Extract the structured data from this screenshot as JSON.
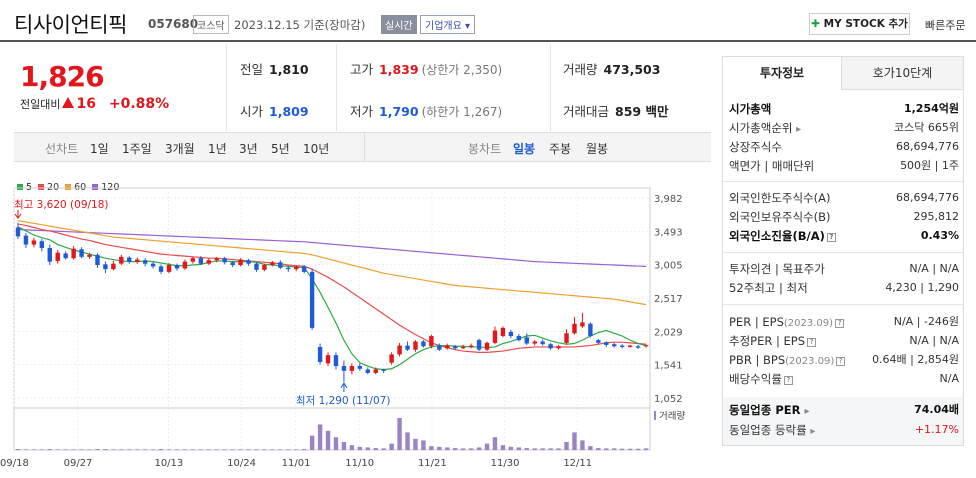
{
  "header": {
    "company_name": "티사이언티픽",
    "code": "057680",
    "market": "코스닥",
    "date": "2023.12.15 기준(장마감)",
    "realtime_label": "실시간",
    "company_info_label": "기업개요",
    "mystock_label": "MY STOCK 추가",
    "fast_order_label": "빠른주문"
  },
  "price": {
    "current": "1,826",
    "change_label": "전일대비",
    "change": "16",
    "change_rate": "+0.88%"
  },
  "stats": {
    "prev_close_label": "전일",
    "prev_close": "1,810",
    "high_label": "고가",
    "high": "1,839",
    "upper_limit": "(상한가 2,350)",
    "volume_label": "거래량",
    "volume": "473,503",
    "open_label": "시가",
    "open": "1,809",
    "low_label": "저가",
    "low": "1,790",
    "lower_limit": "(하한가 1,267)",
    "amount_label": "거래대금",
    "amount": "859 백만"
  },
  "tabs": {
    "line_label": "선차트",
    "periods": [
      "1일",
      "1주일",
      "3개월",
      "1년",
      "3년",
      "5년",
      "10년"
    ],
    "candle_label": "봉차트",
    "candles": [
      "일봉",
      "주봉",
      "월봉"
    ],
    "active_candle": "일봉"
  },
  "chart_data": {
    "type": "candlestick",
    "legend": [
      {
        "name": "5",
        "color": "#2eaa44"
      },
      {
        "name": "20",
        "color": "#e84c4c"
      },
      {
        "name": "60",
        "color": "#f0a030"
      },
      {
        "name": "120",
        "color": "#9a60d0"
      }
    ],
    "y_ticks": [
      "3,982",
      "3,493",
      "3,005",
      "2,517",
      "2,029",
      "1,541",
      "1,052"
    ],
    "ylim": [
      1052,
      3982
    ],
    "x_ticks": [
      "09/18",
      "09/27",
      "10/13",
      "10/24",
      "11/01",
      "11/10",
      "11/21",
      "11/30",
      "12/11"
    ],
    "max_annotation": "최고 3,620 (09/18)",
    "min_annotation": "최저 1,290 (11/07)",
    "volume_label": "거래량",
    "candles": [
      {
        "o": 3550,
        "c": 3420,
        "h": 3620,
        "l": 3380
      },
      {
        "o": 3430,
        "c": 3300,
        "h": 3470,
        "l": 3250
      },
      {
        "o": 3300,
        "c": 3360,
        "h": 3400,
        "l": 3260
      },
      {
        "o": 3350,
        "c": 3250,
        "h": 3380,
        "l": 3200
      },
      {
        "o": 3250,
        "c": 3050,
        "h": 3300,
        "l": 3000
      },
      {
        "o": 3060,
        "c": 3180,
        "h": 3220,
        "l": 3020
      },
      {
        "o": 3170,
        "c": 3100,
        "h": 3200,
        "l": 3080
      },
      {
        "o": 3100,
        "c": 3240,
        "h": 3280,
        "l": 3080
      },
      {
        "o": 3230,
        "c": 3120,
        "h": 3260,
        "l": 3100
      },
      {
        "o": 3120,
        "c": 3150,
        "h": 3180,
        "l": 3090
      },
      {
        "o": 3150,
        "c": 3000,
        "h": 3170,
        "l": 2960
      },
      {
        "o": 3010,
        "c": 2940,
        "h": 3050,
        "l": 2880
      },
      {
        "o": 2940,
        "c": 3020,
        "h": 3060,
        "l": 2920
      },
      {
        "o": 3020,
        "c": 3120,
        "h": 3150,
        "l": 3000
      },
      {
        "o": 3110,
        "c": 3050,
        "h": 3130,
        "l": 3020
      },
      {
        "o": 3050,
        "c": 3080,
        "h": 3110,
        "l": 3020
      },
      {
        "o": 3070,
        "c": 3020,
        "h": 3100,
        "l": 2980
      },
      {
        "o": 3020,
        "c": 2980,
        "h": 3050,
        "l": 2950
      },
      {
        "o": 2980,
        "c": 2900,
        "h": 3010,
        "l": 2870
      },
      {
        "o": 2900,
        "c": 3000,
        "h": 3030,
        "l": 2880
      },
      {
        "o": 3000,
        "c": 2950,
        "h": 3020,
        "l": 2920
      },
      {
        "o": 2950,
        "c": 3050,
        "h": 3080,
        "l": 2930
      },
      {
        "o": 3050,
        "c": 3100,
        "h": 3120,
        "l": 3020
      },
      {
        "o": 3100,
        "c": 3020,
        "h": 3130,
        "l": 3000
      },
      {
        "o": 3020,
        "c": 3070,
        "h": 3100,
        "l": 3000
      },
      {
        "o": 3070,
        "c": 3100,
        "h": 3120,
        "l": 3040
      },
      {
        "o": 3100,
        "c": 3040,
        "h": 3120,
        "l": 3010
      },
      {
        "o": 3040,
        "c": 3000,
        "h": 3060,
        "l": 2970
      },
      {
        "o": 3000,
        "c": 3080,
        "h": 3100,
        "l": 2980
      },
      {
        "o": 3070,
        "c": 3020,
        "h": 3090,
        "l": 2990
      },
      {
        "o": 3020,
        "c": 2930,
        "h": 3040,
        "l": 2900
      },
      {
        "o": 2930,
        "c": 3000,
        "h": 3020,
        "l": 2910
      },
      {
        "o": 3000,
        "c": 3040,
        "h": 3060,
        "l": 2980
      },
      {
        "o": 3040,
        "c": 2960,
        "h": 3070,
        "l": 2940
      },
      {
        "o": 2960,
        "c": 2940,
        "h": 2990,
        "l": 2900
      },
      {
        "o": 2940,
        "c": 2980,
        "h": 3000,
        "l": 2910
      },
      {
        "o": 2980,
        "c": 2900,
        "h": 3000,
        "l": 2880
      },
      {
        "o": 2900,
        "c": 2080,
        "h": 2950,
        "l": 2050
      },
      {
        "o": 1800,
        "c": 1580,
        "h": 1850,
        "l": 1540
      },
      {
        "o": 1560,
        "c": 1680,
        "h": 1720,
        "l": 1520
      },
      {
        "o": 1680,
        "c": 1520,
        "h": 1720,
        "l": 1470
      },
      {
        "o": 1520,
        "c": 1450,
        "h": 1600,
        "l": 1290
      },
      {
        "o": 1450,
        "c": 1520,
        "h": 1560,
        "l": 1400
      },
      {
        "o": 1520,
        "c": 1480,
        "h": 1560,
        "l": 1450
      },
      {
        "o": 1470,
        "c": 1420,
        "h": 1500,
        "l": 1400
      },
      {
        "o": 1420,
        "c": 1470,
        "h": 1500,
        "l": 1400
      },
      {
        "o": 1470,
        "c": 1450,
        "h": 1480,
        "l": 1420
      },
      {
        "o": 1570,
        "c": 1690,
        "h": 1720,
        "l": 1540
      },
      {
        "o": 1690,
        "c": 1820,
        "h": 1860,
        "l": 1660
      },
      {
        "o": 1820,
        "c": 1760,
        "h": 1880,
        "l": 1740
      },
      {
        "o": 1760,
        "c": 1880,
        "h": 1900,
        "l": 1730
      },
      {
        "o": 1880,
        "c": 1810,
        "h": 1900,
        "l": 1790
      },
      {
        "o": 1810,
        "c": 1960,
        "h": 1980,
        "l": 1780
      },
      {
        "o": 1820,
        "c": 1760,
        "h": 1850,
        "l": 1740
      },
      {
        "o": 1780,
        "c": 1820,
        "h": 1850,
        "l": 1760
      },
      {
        "o": 1810,
        "c": 1780,
        "h": 1830,
        "l": 1760
      },
      {
        "o": 1780,
        "c": 1800,
        "h": 1830,
        "l": 1770
      },
      {
        "o": 1800,
        "c": 1820,
        "h": 1850,
        "l": 1780
      },
      {
        "o": 1900,
        "c": 1760,
        "h": 1920,
        "l": 1740
      },
      {
        "o": 1760,
        "c": 1860,
        "h": 1880,
        "l": 1740
      },
      {
        "o": 1860,
        "c": 2040,
        "h": 2100,
        "l": 1840
      },
      {
        "o": 1960,
        "c": 2080,
        "h": 2100,
        "l": 1940
      },
      {
        "o": 2020,
        "c": 1960,
        "h": 2050,
        "l": 1930
      },
      {
        "o": 1960,
        "c": 1900,
        "h": 1990,
        "l": 1880
      },
      {
        "o": 1940,
        "c": 1850,
        "h": 2000,
        "l": 1830
      },
      {
        "o": 1850,
        "c": 1880,
        "h": 1900,
        "l": 1820
      },
      {
        "o": 1880,
        "c": 1840,
        "h": 1910,
        "l": 1820
      },
      {
        "o": 1840,
        "c": 1780,
        "h": 1860,
        "l": 1760
      },
      {
        "o": 1780,
        "c": 1810,
        "h": 1830,
        "l": 1760
      },
      {
        "o": 1860,
        "c": 2000,
        "h": 2060,
        "l": 1840
      },
      {
        "o": 2000,
        "c": 2140,
        "h": 2240,
        "l": 1980
      },
      {
        "o": 2100,
        "c": 2160,
        "h": 2300,
        "l": 2080
      },
      {
        "o": 2140,
        "c": 1960,
        "h": 2160,
        "l": 1940
      },
      {
        "o": 1900,
        "c": 1860,
        "h": 1920,
        "l": 1840
      },
      {
        "o": 1870,
        "c": 1830,
        "h": 1880,
        "l": 1800
      },
      {
        "o": 1840,
        "c": 1810,
        "h": 1860,
        "l": 1790
      },
      {
        "o": 1820,
        "c": 1800,
        "h": 1840,
        "l": 1780
      },
      {
        "o": 1800,
        "c": 1820,
        "h": 1830,
        "l": 1790
      },
      {
        "o": 1810,
        "c": 1790,
        "h": 1830,
        "l": 1770
      },
      {
        "o": 1809,
        "c": 1826,
        "h": 1839,
        "l": 1790
      }
    ],
    "volumes": [
      3,
      2,
      2,
      2,
      3,
      2,
      2,
      2,
      2,
      2,
      3,
      3,
      2,
      2,
      2,
      2,
      2,
      2,
      3,
      2,
      2,
      2,
      2,
      2,
      2,
      2,
      2,
      2,
      2,
      2,
      2,
      2,
      2,
      2,
      2,
      2,
      3,
      45,
      80,
      60,
      40,
      25,
      15,
      10,
      8,
      6,
      5,
      20,
      100,
      55,
      35,
      30,
      12,
      10,
      8,
      6,
      5,
      5,
      8,
      20,
      40,
      15,
      10,
      8,
      6,
      5,
      5,
      5,
      5,
      25,
      55,
      30,
      12,
      6,
      5,
      5,
      4,
      4,
      4,
      5
    ],
    "ma5": [
      3560,
      3500,
      3440,
      3400,
      3370,
      3300,
      3260,
      3220,
      3190,
      3160,
      3130,
      3100,
      3080,
      3060,
      3050,
      3050,
      3060,
      3050,
      3030,
      3010,
      2990,
      2990,
      3000,
      3010,
      3040,
      3060,
      3060,
      3050,
      3050,
      3050,
      3040,
      3010,
      3000,
      2990,
      2980,
      2970,
      2960,
      2800,
      2600,
      2380,
      2150,
      1900,
      1700,
      1570,
      1520,
      1480,
      1470,
      1480,
      1540,
      1620,
      1700,
      1760,
      1800,
      1820,
      1820,
      1810,
      1810,
      1800,
      1800,
      1790,
      1800,
      1850,
      1880,
      1920,
      1960,
      1970,
      1930,
      1890,
      1860,
      1840,
      1850,
      1900,
      1960,
      2010,
      2040,
      2000,
      1960,
      1900,
      1850,
      1820
    ],
    "ma20": [
      3600,
      3580,
      3550,
      3520,
      3500,
      3470,
      3440,
      3410,
      3380,
      3360,
      3330,
      3300,
      3280,
      3260,
      3240,
      3220,
      3200,
      3180,
      3160,
      3150,
      3140,
      3130,
      3120,
      3110,
      3100,
      3100,
      3090,
      3080,
      3070,
      3060,
      3050,
      3040,
      3030,
      3020,
      3000,
      2990,
      2980,
      2940,
      2880,
      2820,
      2750,
      2680,
      2600,
      2520,
      2440,
      2360,
      2280,
      2200,
      2120,
      2050,
      1980,
      1920,
      1860,
      1820,
      1790,
      1760,
      1740,
      1730,
      1720,
      1720,
      1730,
      1740,
      1760,
      1780,
      1790,
      1800,
      1800,
      1800,
      1800,
      1800,
      1800,
      1810,
      1820,
      1840,
      1860,
      1870,
      1870,
      1860,
      1850,
      1840
    ],
    "ma60": [
      3650,
      3630,
      3610,
      3590,
      3570,
      3550,
      3530,
      3510,
      3490,
      3470,
      3450,
      3430,
      3410,
      3400,
      3390,
      3380,
      3370,
      3360,
      3350,
      3340,
      3330,
      3320,
      3310,
      3300,
      3290,
      3280,
      3270,
      3260,
      3250,
      3240,
      3230,
      3220,
      3210,
      3200,
      3190,
      3180,
      3170,
      3150,
      3120,
      3090,
      3060,
      3030,
      3000,
      2970,
      2940,
      2910,
      2880,
      2860,
      2840,
      2820,
      2800,
      2780,
      2760,
      2740,
      2720,
      2700,
      2690,
      2680,
      2670,
      2660,
      2650,
      2640,
      2630,
      2620,
      2610,
      2600,
      2590,
      2580,
      2570,
      2560,
      2550,
      2540,
      2530,
      2520,
      2510,
      2500,
      2480,
      2460,
      2440,
      2420
    ],
    "ma120": [
      3520,
      3515,
      3510,
      3505,
      3500,
      3495,
      3490,
      3485,
      3480,
      3475,
      3470,
      3465,
      3460,
      3455,
      3450,
      3445,
      3440,
      3435,
      3430,
      3425,
      3420,
      3415,
      3410,
      3405,
      3400,
      3395,
      3390,
      3385,
      3380,
      3375,
      3370,
      3365,
      3360,
      3355,
      3350,
      3345,
      3340,
      3330,
      3320,
      3310,
      3300,
      3290,
      3280,
      3270,
      3260,
      3250,
      3240,
      3230,
      3220,
      3210,
      3200,
      3190,
      3180,
      3170,
      3160,
      3150,
      3140,
      3130,
      3120,
      3110,
      3100,
      3090,
      3080,
      3070,
      3060,
      3050,
      3045,
      3040,
      3035,
      3030,
      3025,
      3020,
      3015,
      3010,
      3005,
      3000,
      2995,
      2990,
      2985,
      2980
    ]
  },
  "right_panel": {
    "tab_invest": "투자정보",
    "tab_quote": "호가10단계",
    "market_cap_label": "시가총액",
    "market_cap": "1,254억원",
    "cap_rank_label": "시가총액순위",
    "cap_rank": "코스닥 665위",
    "shares_label": "상장주식수",
    "shares": "68,694,776",
    "par_label": "액면가 | 매매단위",
    "par": "500원 | 1주",
    "foreign_limit_label": "외국인한도주식수(A)",
    "foreign_limit": "68,694,776",
    "foreign_hold_label": "외국인보유주식수(B)",
    "foreign_hold": "295,812",
    "foreign_ratio_label": "외국인소진율(B/A)",
    "foreign_ratio": "0.43%",
    "opinion_label": "투자의견 | 목표주가",
    "opinion": "N/A | N/A",
    "week52_label": "52주최고 | 최저",
    "week52": "4,230 | 1,290",
    "per_label": "PER | EPS",
    "per_date": "(2023.09)",
    "per": "N/A | -246원",
    "est_per_label": "추정PER | EPS",
    "est_per": "N/A | N/A",
    "pbr_label": "PBR | BPS",
    "pbr_date": "(2023.09)",
    "pbr": "0.64배 | 2,854원",
    "div_label": "배당수익률",
    "div": "N/A",
    "sector_per_label": "동일업종 PER",
    "sector_per": "74.04배",
    "sector_rate_label": "동일업종 등락률",
    "sector_rate": "+1.17%"
  }
}
